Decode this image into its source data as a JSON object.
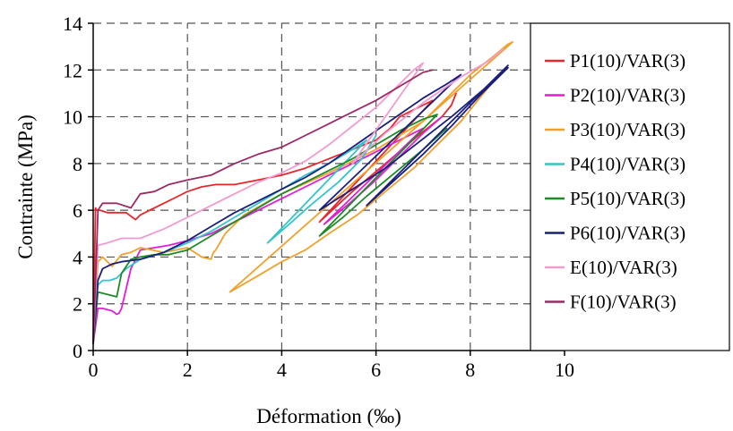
{
  "chart_data": {
    "type": "line",
    "title": "",
    "xlabel": "Déformation (‰)",
    "ylabel": "Contrainte (MPa)",
    "xlim": [
      0,
      10
    ],
    "ylim": [
      0,
      14
    ],
    "xticks": [
      0,
      2,
      4,
      6,
      8,
      10
    ],
    "yticks": [
      0,
      2,
      4,
      6,
      8,
      10,
      12,
      14
    ],
    "grid": true,
    "legend_position": "right",
    "series": [
      {
        "name": "P1(10)/VAR(3)",
        "color": "#e8262b",
        "x": [
          0,
          0.05,
          0.08,
          0.15,
          0.3,
          0.5,
          0.7,
          0.9,
          1.0,
          1.2,
          1.5,
          1.8,
          2.0,
          2.3,
          2.6,
          3.0,
          3.5,
          4.0,
          4.5,
          5.0,
          5.5,
          6.0,
          6.3,
          6.5,
          6.8,
          7.0,
          7.2,
          4.8,
          5.5,
          6.2,
          6.9,
          7.4,
          7.6,
          7.7
        ],
        "y": [
          0.3,
          6.1,
          6.0,
          6.0,
          5.9,
          5.9,
          5.9,
          5.6,
          5.8,
          6.0,
          6.3,
          6.6,
          6.8,
          7.0,
          7.1,
          7.1,
          7.3,
          7.5,
          7.8,
          8.2,
          8.6,
          9.0,
          9.5,
          10.0,
          10.3,
          10.5,
          10.7,
          5.5,
          6.8,
          8.0,
          9.2,
          10.0,
          10.5,
          11.0
        ]
      },
      {
        "name": "P2(10)/VAR(3)",
        "color": "#e41bd9",
        "x": [
          0,
          0.1,
          0.2,
          0.4,
          0.5,
          0.55,
          0.6,
          0.8,
          1.0,
          1.3,
          1.6,
          2.0,
          2.5,
          3.0,
          3.5,
          4.0,
          4.5,
          5.0,
          5.5,
          6.0,
          6.5,
          7.0,
          4.9,
          5.5,
          6.0,
          6.5,
          7.0,
          7.4
        ],
        "y": [
          0.3,
          1.8,
          1.8,
          1.7,
          1.55,
          1.6,
          1.8,
          3.5,
          4.3,
          4.4,
          4.5,
          4.7,
          5.0,
          5.5,
          6.0,
          6.5,
          7.0,
          7.5,
          8.0,
          8.5,
          9.0,
          9.5,
          5.4,
          6.4,
          7.3,
          8.3,
          9.3,
          10.0
        ]
      },
      {
        "name": "P3(10)/VAR(3)",
        "color": "#f0a12c",
        "x": [
          0,
          0.1,
          0.2,
          0.4,
          0.6,
          0.8,
          1.0,
          1.5,
          2.0,
          2.3,
          2.5,
          2.55,
          2.6,
          2.8,
          3.2,
          4.0,
          5.0,
          6.0,
          7.0,
          7.5,
          8.0,
          8.5,
          8.8,
          8.9,
          2.9,
          3.5,
          4.0,
          4.5,
          5.0,
          5.6,
          6.2,
          6.8,
          7.3,
          7.8,
          8.2,
          8.6
        ],
        "y": [
          0.3,
          3.8,
          4.0,
          3.6,
          4.1,
          4.2,
          4.4,
          4.2,
          4.4,
          4.0,
          3.9,
          4.2,
          4.3,
          5.0,
          5.8,
          6.7,
          7.6,
          8.6,
          9.8,
          10.8,
          11.8,
          12.6,
          13.1,
          13.2,
          2.5,
          3.2,
          3.8,
          4.3,
          5.0,
          5.8,
          6.8,
          7.8,
          8.8,
          9.8,
          10.8,
          11.8
        ]
      },
      {
        "name": "P4(10)/VAR(3)",
        "color": "#35c4c9",
        "x": [
          0,
          0.1,
          0.2,
          0.35,
          0.5,
          0.7,
          1.0,
          1.5,
          2.0,
          2.5,
          3.0,
          3.5,
          4.0,
          4.5,
          5.0,
          5.5,
          5.8,
          3.7,
          4.1,
          4.6,
          5.2,
          5.7,
          6.0
        ],
        "y": [
          0.3,
          2.8,
          3.0,
          3.0,
          3.1,
          3.5,
          3.9,
          4.2,
          4.6,
          5.1,
          5.7,
          6.3,
          6.9,
          7.5,
          8.0,
          8.6,
          9.0,
          4.6,
          5.3,
          6.2,
          7.2,
          8.2,
          9.2
        ]
      },
      {
        "name": "P5(10)/VAR(3)",
        "color": "#1e8a27",
        "x": [
          0,
          0.1,
          0.3,
          0.5,
          0.6,
          0.8,
          1.0,
          1.3,
          1.6,
          2.0,
          2.5,
          3.0,
          3.5,
          4.0,
          4.5,
          5.0,
          5.5,
          6.0,
          6.5,
          7.0,
          7.3,
          4.8,
          5.3,
          5.8,
          6.4,
          7.0,
          7.5
        ],
        "y": [
          0.3,
          2.5,
          2.4,
          2.3,
          3.3,
          3.9,
          4.0,
          4.1,
          4.1,
          4.3,
          4.9,
          5.5,
          6.1,
          6.7,
          7.2,
          7.7,
          8.2,
          8.8,
          9.4,
          9.9,
          10.1,
          4.9,
          5.7,
          6.6,
          7.6,
          8.6,
          9.5
        ]
      },
      {
        "name": "P6(10)/VAR(3)",
        "color": "#1a1f7c",
        "x": [
          0,
          0.1,
          0.2,
          0.4,
          0.6,
          1.0,
          1.5,
          2.0,
          2.5,
          3.0,
          3.5,
          4.0,
          4.5,
          5.0,
          5.5,
          6.0,
          6.5,
          7.0,
          7.5,
          7.8,
          4.8,
          5.5,
          6.2,
          6.9,
          7.6,
          8.3,
          8.8,
          5.8,
          6.4,
          7.0,
          7.6,
          8.2,
          8.8
        ],
        "y": [
          0.3,
          3.0,
          3.5,
          3.7,
          3.8,
          3.9,
          4.2,
          4.7,
          5.3,
          5.9,
          6.4,
          6.9,
          7.4,
          8.0,
          8.7,
          9.4,
          10.1,
          10.8,
          11.4,
          11.8,
          6.0,
          6.9,
          7.8,
          8.9,
          10.0,
          11.2,
          12.2,
          6.2,
          7.3,
          8.4,
          9.6,
          10.9,
          12.1
        ]
      },
      {
        "name": "E(10)/VAR(3)",
        "color": "#f39bd1",
        "x": [
          0,
          0.1,
          0.3,
          0.6,
          1.0,
          1.5,
          2.0,
          2.5,
          3.0,
          3.5,
          4.0,
          4.5,
          5.0,
          5.5,
          6.0,
          6.5,
          6.8,
          7.0,
          5.5,
          6.2,
          7.0,
          7.8,
          8.4,
          8.7
        ],
        "y": [
          0.3,
          4.5,
          4.6,
          4.8,
          4.8,
          5.2,
          5.7,
          6.2,
          6.7,
          7.2,
          7.6,
          8.1,
          8.8,
          9.6,
          10.4,
          11.4,
          12.0,
          12.3,
          8.0,
          9.3,
          10.6,
          11.7,
          12.4,
          12.9
        ]
      },
      {
        "name": "F(10)/VAR(3)",
        "color": "#9b2a63",
        "x": [
          0,
          0.08,
          0.1,
          0.2,
          0.5,
          0.8,
          1.0,
          1.3,
          1.6,
          2.0,
          2.5,
          3.0,
          3.5,
          4.0,
          4.5,
          5.0,
          5.5,
          6.0,
          6.5,
          7.0,
          7.2
        ],
        "y": [
          0.3,
          4.7,
          6.0,
          6.3,
          6.3,
          6.1,
          6.7,
          6.8,
          7.1,
          7.3,
          7.5,
          8.0,
          8.4,
          8.7,
          9.2,
          9.7,
          10.2,
          10.7,
          11.3,
          11.9,
          12.0
        ]
      }
    ]
  }
}
